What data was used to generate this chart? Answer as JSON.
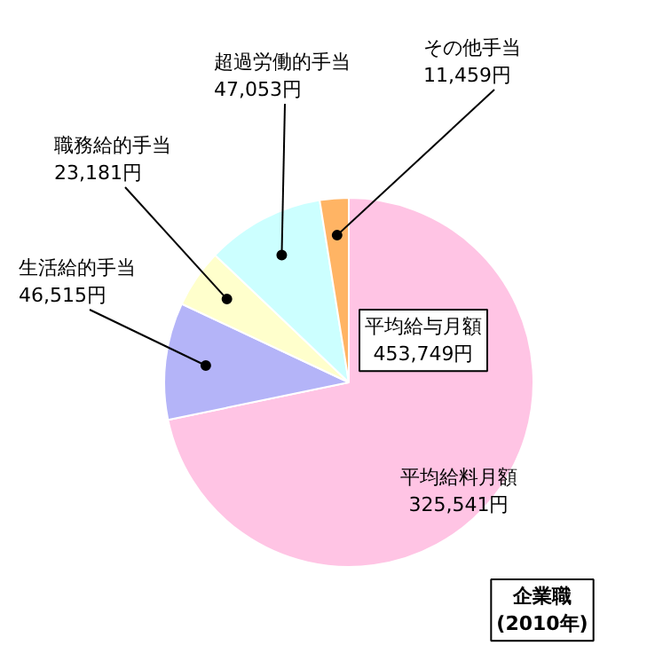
{
  "chart_data": {
    "type": "pie",
    "categories": [
      "平均給料月額",
      "生活給的手当",
      "職務給的手当",
      "超過労働的手当",
      "その他手当"
    ],
    "values": [
      325541,
      46515,
      23181,
      47053,
      11459
    ],
    "colors": [
      "#ffc4e4",
      "#b4b4f8",
      "#ffffcc",
      "#ccffff",
      "#ffb464"
    ],
    "value_labels": [
      "325,541円",
      "46,515円",
      "23,181円",
      "47,053円",
      "11,459円"
    ],
    "annotations": [
      "平均給与月額\n453,749円",
      "企業職\n(2010年)"
    ]
  }
}
